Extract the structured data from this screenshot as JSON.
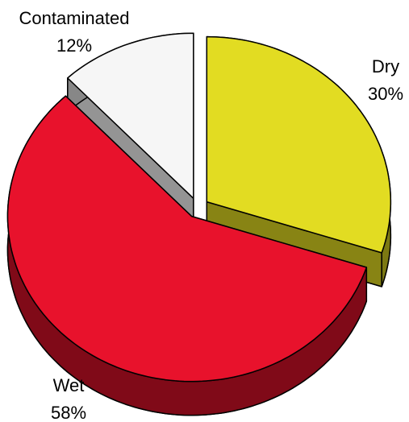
{
  "chart_data": {
    "type": "pie",
    "categories": [
      "Dry",
      "Wet",
      "Contaminated"
    ],
    "values": [
      30,
      58,
      12
    ],
    "value_labels": [
      "30%",
      "58%",
      "12%"
    ],
    "colors": [
      "#e2dc22",
      "#e8122c",
      "#f6f6f6"
    ],
    "exploded": true,
    "three_d": true
  }
}
